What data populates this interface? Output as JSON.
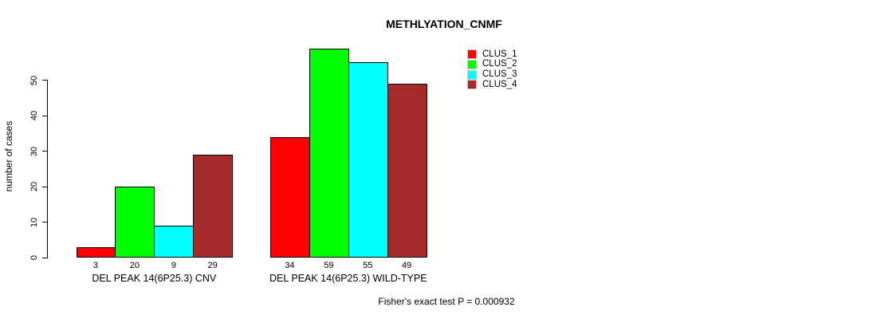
{
  "title": "METHLYATION_CNMF",
  "footer": "Fisher's exact test P = 0.000932",
  "chart_data": {
    "type": "bar",
    "title": "METHLYATION_CNMF",
    "xlabel": "",
    "ylabel": "number of cases",
    "ylim": [
      0,
      59
    ],
    "yticks": [
      0,
      10,
      20,
      30,
      40,
      50
    ],
    "grid": false,
    "legend_position": "right",
    "categories": [
      "DEL PEAK 14(6P25.3) CNV",
      "DEL PEAK 14(6P25.3) WILD-TYPE"
    ],
    "series": [
      {
        "name": "CLUS_1",
        "color": "#ff0000",
        "values": [
          3,
          34
        ]
      },
      {
        "name": "CLUS_2",
        "color": "#00ff00",
        "values": [
          20,
          59
        ]
      },
      {
        "name": "CLUS_3",
        "color": "#00ffff",
        "values": [
          9,
          55
        ]
      },
      {
        "name": "CLUS_4",
        "color": "#a52a2a",
        "values": [
          29,
          49
        ]
      }
    ],
    "bar_value_labels": [
      [
        3,
        20,
        9,
        29
      ],
      [
        34,
        59,
        55,
        49
      ]
    ],
    "annotation": "Fisher's exact test P = 0.000932"
  },
  "colors": {
    "axis": "#000000",
    "bar_border": "#000000",
    "background": "#ffffff"
  }
}
